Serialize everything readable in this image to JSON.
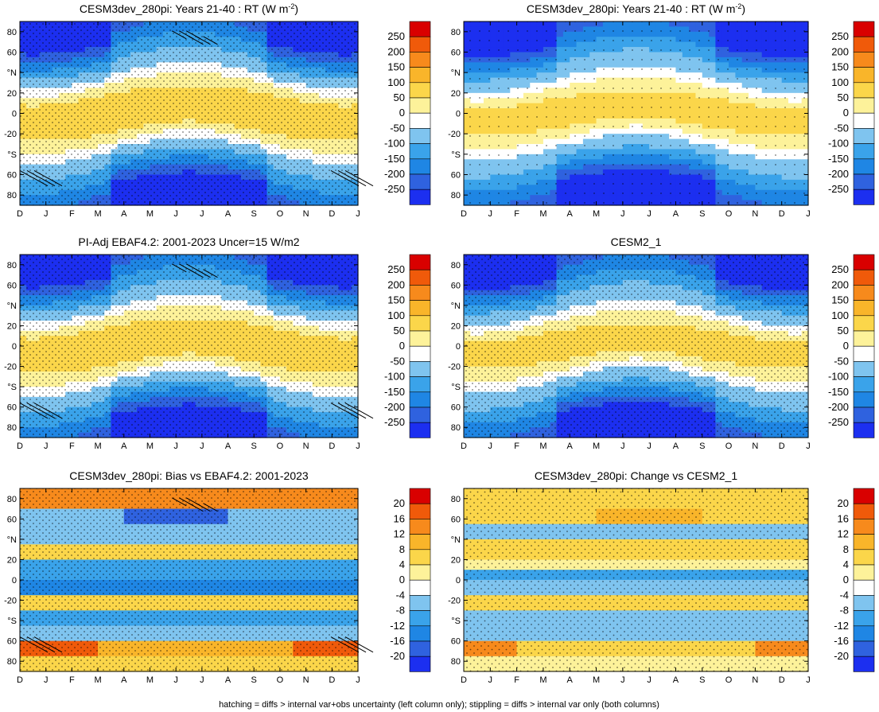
{
  "figure": {
    "caption": "hatching = diffs > internal var+obs uncertainty (left column only); stippling = diffs > internal var only (both columns)"
  },
  "chart_data": [
    {
      "type": "heatmap",
      "title": "CESM3dev_280pi: Years 21-40 : RT (W m",
      "title_superscript": "-2",
      "title_suffix": ")",
      "x_tick_labels": [
        "D",
        "J",
        "F",
        "M",
        "A",
        "M",
        "J",
        "J",
        "A",
        "S",
        "O",
        "N",
        "D",
        "J"
      ],
      "y_ticks": [
        80,
        60,
        40,
        20,
        0,
        -20,
        -40,
        -60,
        -80
      ],
      "y_tick_labels": [
        "80",
        "60",
        "°N",
        "20",
        "0",
        "-20",
        "°S",
        "60",
        "80"
      ],
      "ylim": [
        -90,
        90
      ],
      "colorbar_levels": [
        250,
        200,
        150,
        100,
        50,
        0,
        -50,
        -100,
        -150,
        -200,
        -250
      ],
      "colorbar_labels": [
        "250",
        "200",
        "150",
        "100",
        "50",
        "0",
        "-50",
        "-100",
        "-150",
        "-200",
        "-250"
      ],
      "field_model": "rt_seasonal",
      "variant": 0,
      "hatching": true,
      "stippling": "dense"
    },
    {
      "type": "heatmap",
      "title": "CESM3dev_280pi: Years 21-40 : RT (W m",
      "title_superscript": "-2",
      "title_suffix": ")",
      "x_tick_labels": [
        "D",
        "J",
        "F",
        "M",
        "A",
        "M",
        "J",
        "J",
        "A",
        "S",
        "O",
        "N",
        "D",
        "J"
      ],
      "y_ticks": [
        80,
        60,
        40,
        20,
        0,
        -20,
        -40,
        -60,
        -80
      ],
      "y_tick_labels": [
        "80",
        "60",
        "°N",
        "20",
        "0",
        "-20",
        "°S",
        "60",
        "80"
      ],
      "ylim": [
        -90,
        90
      ],
      "colorbar_levels": [
        250,
        200,
        150,
        100,
        50,
        0,
        -50,
        -100,
        -150,
        -200,
        -250
      ],
      "colorbar_labels": [
        "250",
        "200",
        "150",
        "100",
        "50",
        "0",
        "-50",
        "-100",
        "-150",
        "-200",
        "-250"
      ],
      "field_model": "rt_seasonal",
      "variant": 1,
      "hatching": false,
      "stippling": "sparse"
    },
    {
      "type": "heatmap",
      "title": "PI-Adj EBAF4.2: 2001-2023 Uncer=15 W/m2",
      "x_tick_labels": [
        "D",
        "J",
        "F",
        "M",
        "A",
        "M",
        "J",
        "J",
        "A",
        "S",
        "O",
        "N",
        "D",
        "J"
      ],
      "y_ticks": [
        80,
        60,
        40,
        20,
        0,
        -20,
        -40,
        -60,
        -80
      ],
      "y_tick_labels": [
        "80",
        "60",
        "°N",
        "20",
        "0",
        "-20",
        "°S",
        "60",
        "80"
      ],
      "ylim": [
        -90,
        90
      ],
      "colorbar_levels": [
        250,
        200,
        150,
        100,
        50,
        0,
        -50,
        -100,
        -150,
        -200,
        -250
      ],
      "colorbar_labels": [
        "250",
        "200",
        "150",
        "100",
        "50",
        "0",
        "-50",
        "-100",
        "-150",
        "-200",
        "-250"
      ],
      "field_model": "rt_seasonal",
      "variant": 2,
      "hatching": true,
      "stippling": "dense"
    },
    {
      "type": "heatmap",
      "title": "CESM2_1",
      "x_tick_labels": [
        "D",
        "J",
        "F",
        "M",
        "A",
        "M",
        "J",
        "J",
        "A",
        "S",
        "O",
        "N",
        "D",
        "J"
      ],
      "y_ticks": [
        80,
        60,
        40,
        20,
        0,
        -20,
        -40,
        -60,
        -80
      ],
      "y_tick_labels": [
        "80",
        "60",
        "°N",
        "20",
        "0",
        "-20",
        "°S",
        "60",
        "80"
      ],
      "ylim": [
        -90,
        90
      ],
      "colorbar_levels": [
        250,
        200,
        150,
        100,
        50,
        0,
        -50,
        -100,
        -150,
        -200,
        -250
      ],
      "colorbar_labels": [
        "250",
        "200",
        "150",
        "100",
        "50",
        "0",
        "-50",
        "-100",
        "-150",
        "-200",
        "-250"
      ],
      "field_model": "rt_seasonal",
      "variant": 3,
      "hatching": false,
      "stippling": "dense"
    },
    {
      "type": "heatmap",
      "title": "CESM3dev_280pi: Bias vs EBAF4.2: 2001-2023",
      "x_tick_labels": [
        "D",
        "J",
        "F",
        "M",
        "A",
        "M",
        "J",
        "J",
        "A",
        "S",
        "O",
        "N",
        "D",
        "J"
      ],
      "y_ticks": [
        80,
        60,
        40,
        20,
        0,
        -20,
        -40,
        -60,
        -80
      ],
      "y_tick_labels": [
        "80",
        "60",
        "°N",
        "20",
        "0",
        "-20",
        "°S",
        "60",
        "80"
      ],
      "ylim": [
        -90,
        90
      ],
      "colorbar_levels": [
        20,
        16,
        12,
        8,
        4,
        0,
        -4,
        -8,
        -12,
        -16,
        -20
      ],
      "colorbar_labels": [
        "20",
        "16",
        "12",
        "8",
        "4",
        "0",
        "-4",
        "-8",
        "-12",
        "-16",
        "-20"
      ],
      "field_model": "bias_bands",
      "variant": 0,
      "hatching": true,
      "stippling": "dense"
    },
    {
      "type": "heatmap",
      "title": "CESM3dev_280pi: Change vs CESM2_1",
      "x_tick_labels": [
        "D",
        "J",
        "F",
        "M",
        "A",
        "M",
        "J",
        "J",
        "A",
        "S",
        "O",
        "N",
        "D",
        "J"
      ],
      "y_ticks": [
        80,
        60,
        40,
        20,
        0,
        -20,
        -40,
        -60,
        -80
      ],
      "y_tick_labels": [
        "80",
        "60",
        "°N",
        "20",
        "0",
        "-20",
        "°S",
        "60",
        "80"
      ],
      "ylim": [
        -90,
        90
      ],
      "colorbar_levels": [
        20,
        16,
        12,
        8,
        4,
        0,
        -4,
        -8,
        -12,
        -16,
        -20
      ],
      "colorbar_labels": [
        "20",
        "16",
        "12",
        "8",
        "4",
        "0",
        "-4",
        "-8",
        "-12",
        "-16",
        "-20"
      ],
      "field_model": "change_bands",
      "variant": 1,
      "hatching": false,
      "stippling": "medium"
    }
  ],
  "colors": {
    "palette": [
      "#d90000",
      "#e83a10",
      "#f06a1a",
      "#f7961f",
      "#f8bb2a",
      "#fadb4a",
      "#fdf29a",
      "#ffffff",
      "#7fc4ef",
      "#4fb0ec",
      "#2a9ce8",
      "#1e86e3",
      "#2b6fe0",
      "#3556dd",
      "#2a3ee0",
      "#0000ff"
    ],
    "levels_top_to_bottom": [
      "#d90000",
      "#f05a0a",
      "#f78a1c",
      "#f9b52a",
      "#fbd64a",
      "#fdf29a",
      "#ffffff",
      "#7fc4ef",
      "#3aa3ea",
      "#1f86e4",
      "#2f62df",
      "#1c2ff0"
    ]
  }
}
